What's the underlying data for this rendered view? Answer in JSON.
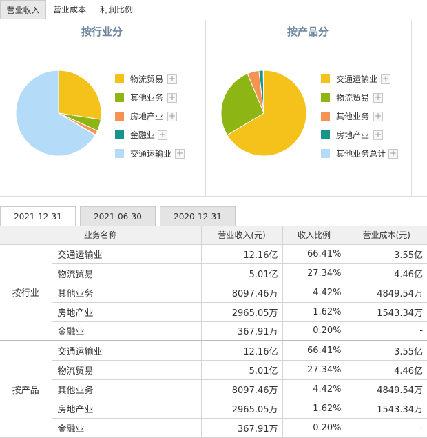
{
  "top_tabs": [
    "营业收入",
    "营业成本",
    "利润比例"
  ],
  "colors": {
    "yellow": "#f5c21c",
    "green": "#8db514",
    "orange": "#f79352",
    "teal": "#17958c",
    "lightblue": "#b4dcf8"
  },
  "industry_panel": {
    "title": "按行业分",
    "legend": [
      "物流贸易",
      "其他业务",
      "房地产业",
      "金融业",
      "交通运输业"
    ],
    "plus_label": "+"
  },
  "product_panel": {
    "title": "按产品分",
    "legend": [
      "交通运输业",
      "物流贸易",
      "其他业务",
      "房地产业",
      "其他业务总计"
    ],
    "plus_label": "+"
  },
  "chart_data": [
    {
      "type": "pie",
      "title": "按行业分",
      "categories": [
        "物流贸易",
        "其他业务",
        "房地产业",
        "金融业",
        "交通运输业"
      ],
      "values": [
        27.34,
        4.42,
        1.62,
        0.2,
        66.41
      ],
      "colors": [
        "#f5c21c",
        "#8db514",
        "#f79352",
        "#17958c",
        "#b4dcf8"
      ]
    },
    {
      "type": "pie",
      "title": "按产品分",
      "categories": [
        "交通运输业",
        "物流贸易",
        "其他业务",
        "房地产业",
        "其他业务总计"
      ],
      "values": [
        66.41,
        27.34,
        4.42,
        1.62,
        0.2
      ],
      "colors": [
        "#f5c21c",
        "#8db514",
        "#f79352",
        "#17958c",
        "#b4dcf8"
      ]
    }
  ],
  "date_tabs": [
    "2021-12-31",
    "2021-06-30",
    "2020-12-31"
  ],
  "table": {
    "headers": [
      "业务名称",
      "营业收入(元)",
      "收入比例",
      "营业成本(元)"
    ],
    "groups": [
      {
        "label": "按行业",
        "rows": [
          [
            "交通运输业",
            "12.16亿",
            "66.41%",
            "3.55亿"
          ],
          [
            "物流贸易",
            "5.01亿",
            "27.34%",
            "4.46亿"
          ],
          [
            "其他业务",
            "8097.46万",
            "4.42%",
            "4849.54万"
          ],
          [
            "房地产业",
            "2965.05万",
            "1.62%",
            "1543.34万"
          ],
          [
            "金融业",
            "367.91万",
            "0.20%",
            "-"
          ]
        ]
      },
      {
        "label": "按产品",
        "rows": [
          [
            "交通运输业",
            "12.16亿",
            "66.41%",
            "3.55亿"
          ],
          [
            "物流贸易",
            "5.01亿",
            "27.34%",
            "4.46亿"
          ],
          [
            "其他业务",
            "8097.46万",
            "4.42%",
            "4849.54万"
          ],
          [
            "房地产业",
            "2965.05万",
            "1.62%",
            "1543.34万"
          ],
          [
            "金融业",
            "367.91万",
            "0.20%",
            "-"
          ]
        ]
      }
    ]
  }
}
